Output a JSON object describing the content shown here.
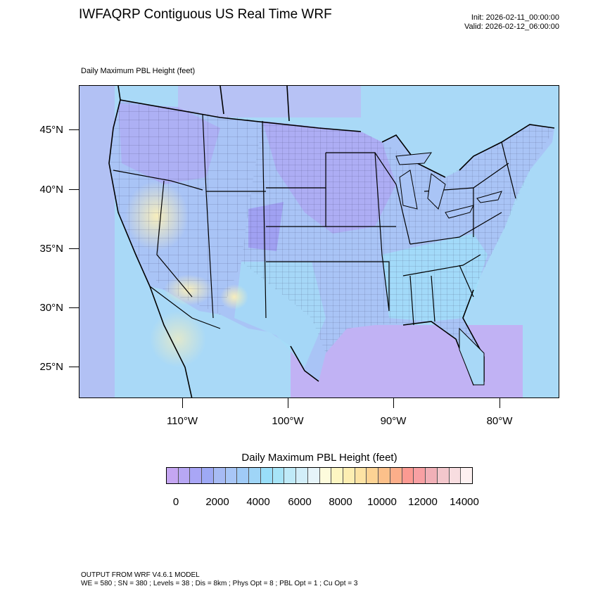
{
  "header": {
    "title": "IWFAQRP Contiguous US Real Time WRF",
    "init": "Init: 2026-02-11_00:00:00",
    "valid": "Valid: 2026-02-12_06:00:00"
  },
  "map": {
    "field_label": "Daily Maximum PBL Height   (feet)",
    "lat_labels": [
      "45°N",
      "40°N",
      "35°N",
      "30°N",
      "25°N"
    ],
    "lon_labels": [
      "110°W",
      "100°W",
      "90°W",
      "80°W"
    ],
    "colors": {
      "low": "#b9a9f2",
      "mid": "#a8e4fb",
      "high": "#fbf0b9",
      "water": "#c6aaf3"
    }
  },
  "colorbar": {
    "title": "Daily Maximum PBL Height  (feet)",
    "labels": [
      "0",
      "2000",
      "4000",
      "6000",
      "8000",
      "10000",
      "12000",
      "14000"
    ],
    "colors": [
      "#c5a6f2",
      "#b7a7f4",
      "#a9a6f6",
      "#9ea9f5",
      "#a7bbf4",
      "#a8c6f6",
      "#a0cbf7",
      "#9fd5f7",
      "#99def9",
      "#a7e4f7",
      "#bfeaf8",
      "#d2eef9",
      "#e6f4f9",
      "#fdfbdc",
      "#fdf6c2",
      "#fdeeb2",
      "#fde3a4",
      "#fdd394",
      "#fcc08a",
      "#fcae8a",
      "#fc9a92",
      "#f8a0a3",
      "#f1b0b7",
      "#f3c7cc",
      "#f8dde0",
      "#fdf1f1"
    ]
  },
  "footer": {
    "line1": "OUTPUT FROM WRF V4.6.1 MODEL",
    "line2": "WE = 580 ; SN = 380 ; Levels = 38 ; Dis = 8km ; Phys Opt = 8 ; PBL Opt = 1 ; Cu Opt = 3"
  }
}
